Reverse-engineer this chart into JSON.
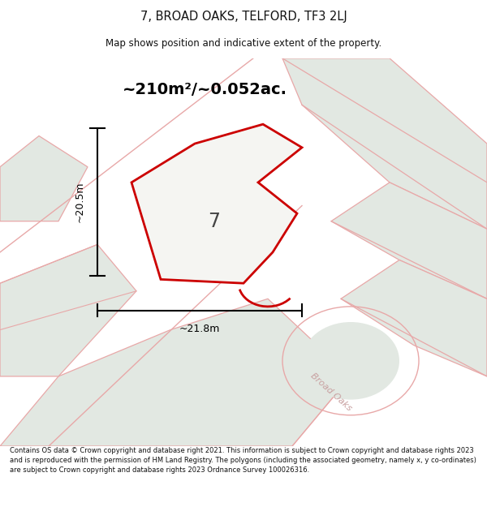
{
  "title_line1": "7, BROAD OAKS, TELFORD, TF3 2LJ",
  "title_line2": "Map shows position and indicative extent of the property.",
  "area_text": "~210m²/~0.052ac.",
  "dimension_h": "~20.5m",
  "dimension_w": "~21.8m",
  "label_number": "7",
  "footer_text": "Contains OS data © Crown copyright and database right 2021. This information is subject to Crown copyright and database rights 2023 and is reproduced with the permission of HM Land Registry. The polygons (including the associated geometry, namely x, y co-ordinates) are subject to Crown copyright and database rights 2023 Ordnance Survey 100026316.",
  "map_bg": "#eef3ee",
  "road_fill": "#e2e8e2",
  "road_color": "#e8a8a8",
  "red_outline": "#cc0000",
  "black": "#000000",
  "road_label": "Broad Oaks",
  "road_label_color": "#c8a0a0"
}
